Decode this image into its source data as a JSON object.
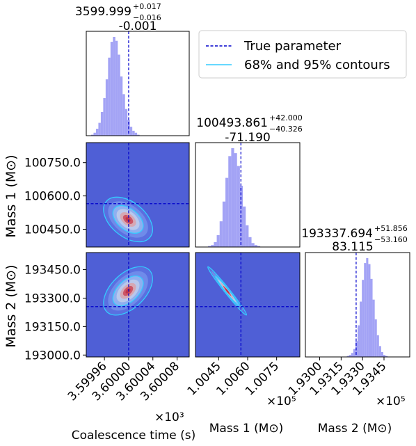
{
  "colors": {
    "hist_fill": "#a3a3f5",
    "density_bg": "#4f5fd6",
    "contour": "#33ccff",
    "truth_line": "#0000cc",
    "density_core": "#c0344a"
  },
  "legend": {
    "entries": [
      "True parameter",
      "68% and 95% contours"
    ],
    "placement": "top-right"
  },
  "chart_data": [
    {
      "type": "histogram",
      "panel": "marginal-coalescence-time",
      "title_main": "3599.999",
      "title_sup": "+0.017",
      "title_sub": "−0.016",
      "title_line2": "-0.001",
      "truth": 3.6,
      "xlim": [
        3.59993,
        3.6001
      ],
      "bin_start": 3.59993,
      "bin_width": 4e-06,
      "counts": [
        0,
        0,
        1,
        3,
        7,
        13,
        24,
        38,
        57,
        79,
        95,
        100,
        96,
        82,
        60,
        42,
        27,
        16,
        9,
        5,
        3,
        1,
        0,
        0,
        0,
        0,
        0,
        0,
        0,
        0,
        0,
        0,
        0,
        0,
        0,
        0,
        0,
        0,
        0,
        0,
        0,
        0,
        0
      ]
    },
    {
      "type": "histogram",
      "panel": "marginal-mass-1",
      "title_main": "100493.861",
      "title_sup": "+42.000",
      "title_sub": "−40.326",
      "title_line2": "-71.190",
      "truth": 1.00565,
      "xlim": [
        1.0033,
        1.0087
      ],
      "bin_start": 1.0038,
      "bin_width": 0.00015,
      "counts": [
        0,
        1,
        2,
        5,
        12,
        26,
        46,
        70,
        92,
        100,
        95,
        82,
        62,
        41,
        22,
        10,
        4,
        2,
        1,
        0,
        0,
        0,
        0,
        0,
        0,
        0
      ]
    },
    {
      "type": "histogram",
      "panel": "marginal-mass-2",
      "title_main": "193337.694",
      "title_sup": "+51.856",
      "title_sub": "−53.160",
      "title_line2": "83.115",
      "truth": 1.93255,
      "xlim": [
        1.929,
        1.9363
      ],
      "bin_start": 1.9316,
      "bin_width": 0.00015,
      "counts": [
        0,
        0,
        1,
        2,
        4,
        8,
        16,
        32,
        56,
        78,
        95,
        100,
        94,
        79,
        58,
        38,
        22,
        11,
        5,
        2,
        1,
        0
      ]
    },
    {
      "type": "heatmap",
      "panel": "joint-time-mass1",
      "x_truth": 3.6,
      "y_truth": 100565,
      "center": [
        3.599999,
        100494
      ],
      "sd": [
        1.65e-05,
        41
      ],
      "corr": -0.45,
      "xlim": [
        3.59993,
        3.6001
      ],
      "ylim": [
        100370,
        100840
      ]
    },
    {
      "type": "heatmap",
      "panel": "joint-time-mass2",
      "x_truth": 3.6,
      "y_truth": 193255,
      "center": [
        3.599999,
        193338
      ],
      "sd": [
        1.65e-05,
        52
      ],
      "corr": 0.5,
      "xlim": [
        3.59993,
        3.6001
      ],
      "ylim": [
        192990,
        193540
      ]
    },
    {
      "type": "heatmap",
      "panel": "joint-mass1-mass2",
      "x_truth": 1.00565,
      "y_truth": 193255,
      "center": [
        1.00494,
        193338
      ],
      "sd": [
        0.00041,
        52
      ],
      "corr": -0.985,
      "xlim": [
        1.0033,
        1.0087
      ],
      "ylim": [
        192990,
        193540
      ]
    }
  ],
  "axes": {
    "y_mass1_ticks": [
      "100750.0",
      "100600.0",
      "100450.0"
    ],
    "y_mass1_values": [
      100750,
      100600,
      100450
    ],
    "y_mass2_ticks": [
      "193450.0",
      "193300.0",
      "193150.0",
      "193000.0"
    ],
    "y_mass2_values": [
      193450,
      193300,
      193150,
      193000
    ],
    "x_time_ticks": [
      "3.59996",
      "3.60000",
      "3.60004",
      "3.60008"
    ],
    "x_time_values": [
      3.59996,
      3.6,
      3.60004,
      3.60008
    ],
    "x_mass1_ticks": [
      "1.0045",
      "1.0060",
      "1.0075"
    ],
    "x_mass1_values": [
      1.0045,
      1.006,
      1.0075
    ],
    "x_mass2_ticks": [
      "1.9300",
      "1.9315",
      "1.9330",
      "1.9345"
    ],
    "x_mass2_values": [
      1.93,
      1.9315,
      1.933,
      1.9345
    ],
    "ylabel_mass1": "Mass 1 (M⊙)",
    "ylabel_mass2": "Mass 2 (M⊙)",
    "xlabel_time": "Coalescence time (s)",
    "xlabel_mass1": "Mass 1 (M⊙)",
    "xlabel_mass2": "Mass 2 (M⊙)",
    "offset_time": "×10³",
    "offset_mass": "×10⁵"
  }
}
